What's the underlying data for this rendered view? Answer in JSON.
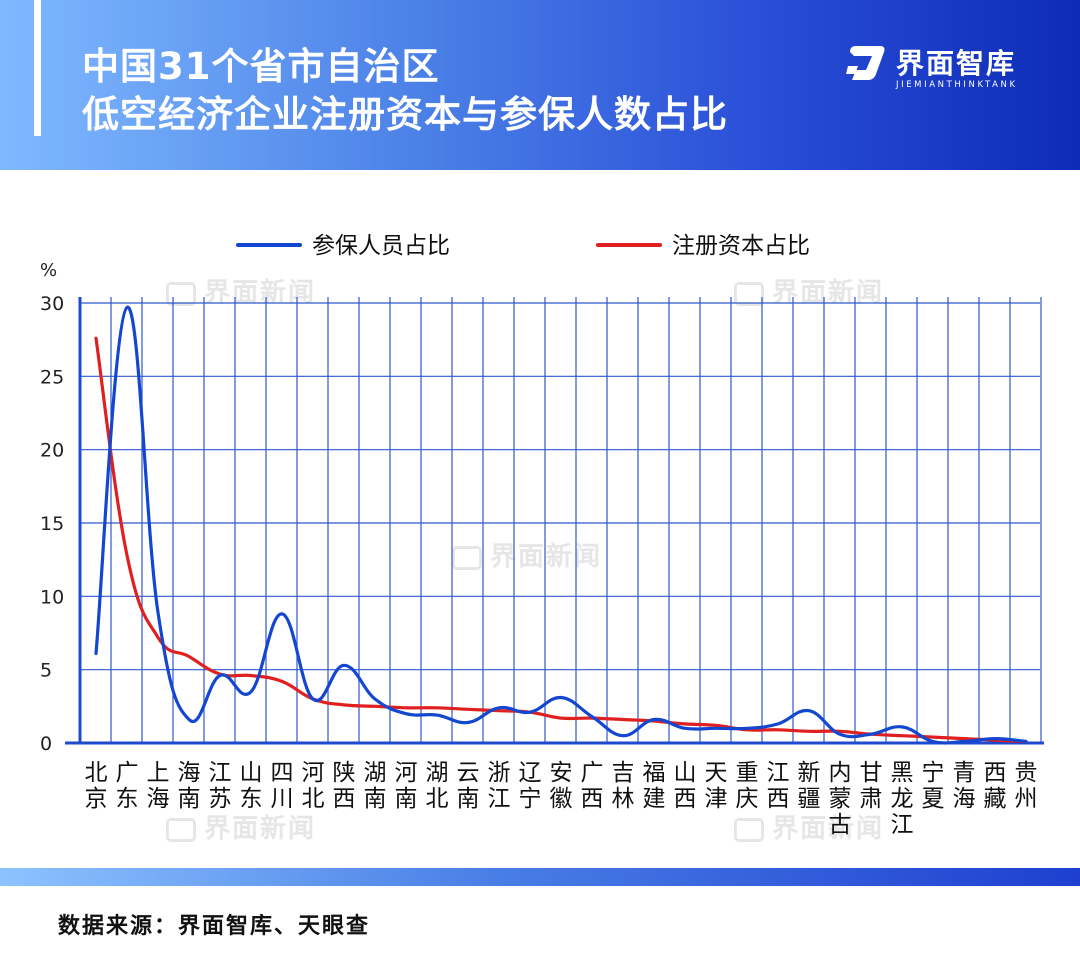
{
  "header": {
    "title_line1": "中国31个省市自治区",
    "title_line2": "低空经济企业注册资本与参保人数占比",
    "brand_name": "界面智库",
    "brand_sub": "JIEMIANTHINKTANK"
  },
  "watermark_text": "界面新闻",
  "footer": {
    "source": "数据来源：界面智库、天眼查"
  },
  "colors": {
    "insured_series": "#1447cf",
    "capital_series": "#e02020",
    "grid": "#2f57cf",
    "axis": "#1f49cf"
  },
  "chart_data": {
    "type": "line",
    "ylabel": "%",
    "ylim": [
      0,
      30
    ],
    "yticks": [
      0,
      5,
      10,
      15,
      20,
      25,
      30
    ],
    "grid": true,
    "legend_position": "top-center",
    "categories": [
      "北京",
      "广东",
      "上海",
      "海南",
      "江苏",
      "山东",
      "四川",
      "河北",
      "陕西",
      "湖南",
      "河南",
      "湖北",
      "云南",
      "浙江",
      "辽宁",
      "安徽",
      "广西",
      "吉林",
      "福建",
      "山西",
      "天津",
      "重庆",
      "江西",
      "新疆",
      "内蒙古",
      "甘肃",
      "黑龙江",
      "宁夏",
      "青海",
      "西藏",
      "贵州"
    ],
    "series": [
      {
        "name": "参保人员占比",
        "values": [
          6.1,
          29.7,
          8.9,
          1.6,
          4.6,
          3.5,
          8.8,
          3.0,
          5.3,
          3.0,
          2.0,
          1.9,
          1.4,
          2.4,
          2.1,
          3.1,
          1.8,
          0.5,
          1.6,
          1.0,
          1.0,
          1.0,
          1.3,
          2.2,
          0.6,
          0.6,
          1.1,
          0.1,
          0.1,
          0.3,
          0.1
        ]
      },
      {
        "name": "注册资本占比",
        "values": [
          27.6,
          12.8,
          7.2,
          5.9,
          4.7,
          4.6,
          4.2,
          3.0,
          2.6,
          2.5,
          2.4,
          2.4,
          2.3,
          2.2,
          2.1,
          1.7,
          1.7,
          1.6,
          1.5,
          1.3,
          1.2,
          0.9,
          0.9,
          0.8,
          0.8,
          0.6,
          0.5,
          0.4,
          0.3,
          0.2,
          0.1
        ]
      }
    ]
  }
}
